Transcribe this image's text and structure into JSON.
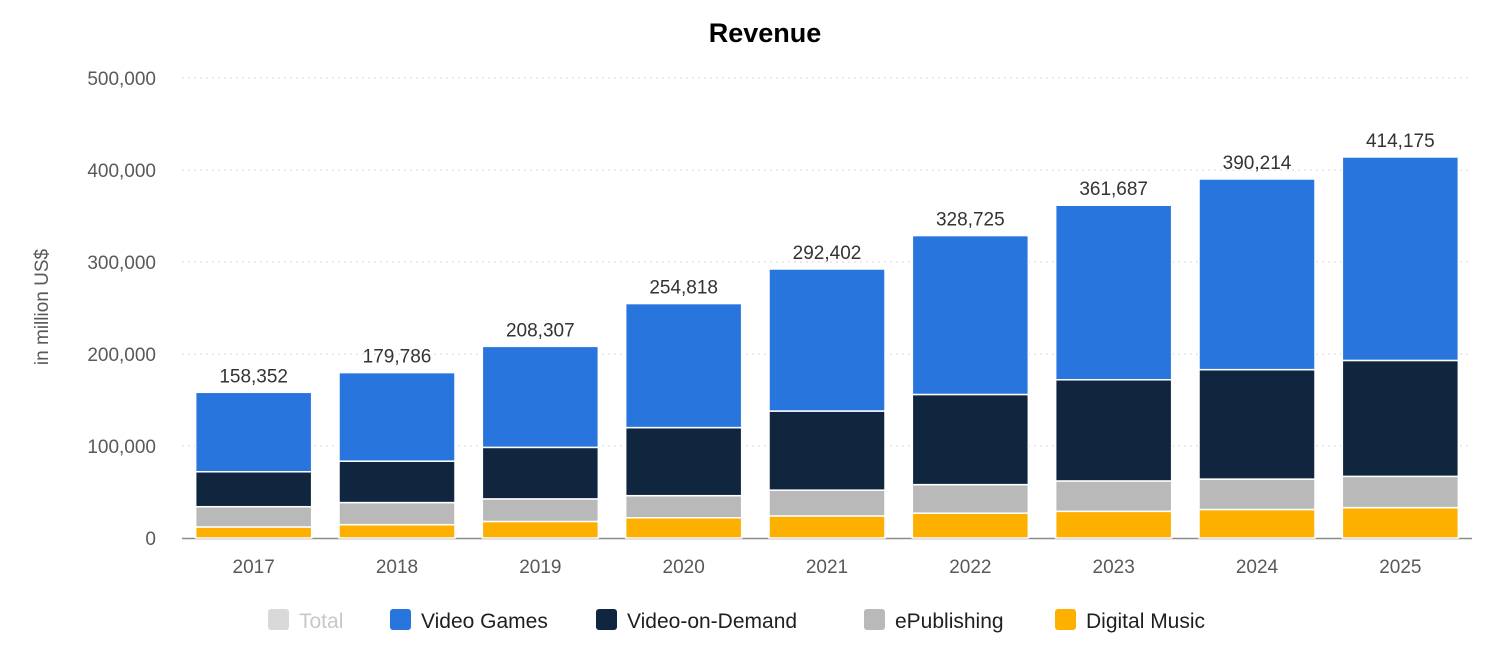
{
  "chart_data": {
    "type": "bar",
    "stacked": true,
    "title": "Revenue",
    "xlabel": "",
    "ylabel": "in million US$",
    "ylim": [
      0,
      500000
    ],
    "yticks": [
      0,
      100000,
      200000,
      300000,
      400000,
      500000
    ],
    "ytick_labels": [
      "0",
      "100,000",
      "200,000",
      "300,000",
      "400,000",
      "500,000"
    ],
    "grid": true,
    "legend_placement": "bottom-center",
    "categories": [
      "2017",
      "2018",
      "2019",
      "2020",
      "2021",
      "2022",
      "2023",
      "2024",
      "2025"
    ],
    "totals": [
      158352,
      179786,
      208307,
      254818,
      292402,
      328725,
      361687,
      390214,
      414175
    ],
    "total_labels": [
      "158,352",
      "179,786",
      "208,307",
      "254,818",
      "292,402",
      "328,725",
      "361,687",
      "390,214",
      "414,175"
    ],
    "legend": [
      {
        "name": "Total",
        "color": "#d9d9d9",
        "inactive": true
      },
      {
        "name": "Video Games",
        "color": "#2876dd"
      },
      {
        "name": "Video-on-Demand",
        "color": "#10263f"
      },
      {
        "name": "ePublishing",
        "color": "#b9b9b9"
      },
      {
        "name": "Digital Music",
        "color": "#fdb000"
      }
    ],
    "series": [
      {
        "name": "Digital Music",
        "color": "#fdb000",
        "values": [
          12000,
          14500,
          18000,
          22000,
          24000,
          27000,
          29000,
          31000,
          33000
        ]
      },
      {
        "name": "ePublishing",
        "color": "#b9b9b9",
        "values": [
          22000,
          24000,
          24500,
          24000,
          28000,
          31000,
          33000,
          33000,
          34000
        ]
      },
      {
        "name": "Video-on-Demand",
        "color": "#10263f",
        "values": [
          38000,
          45000,
          56000,
          74000,
          86000,
          98000,
          110000,
          119000,
          126000
        ]
      },
      {
        "name": "Video Games",
        "color": "#2876dd",
        "values": [
          86352,
          96286,
          109807,
          134818,
          154402,
          172725,
          189687,
          207214,
          221175
        ]
      }
    ]
  }
}
